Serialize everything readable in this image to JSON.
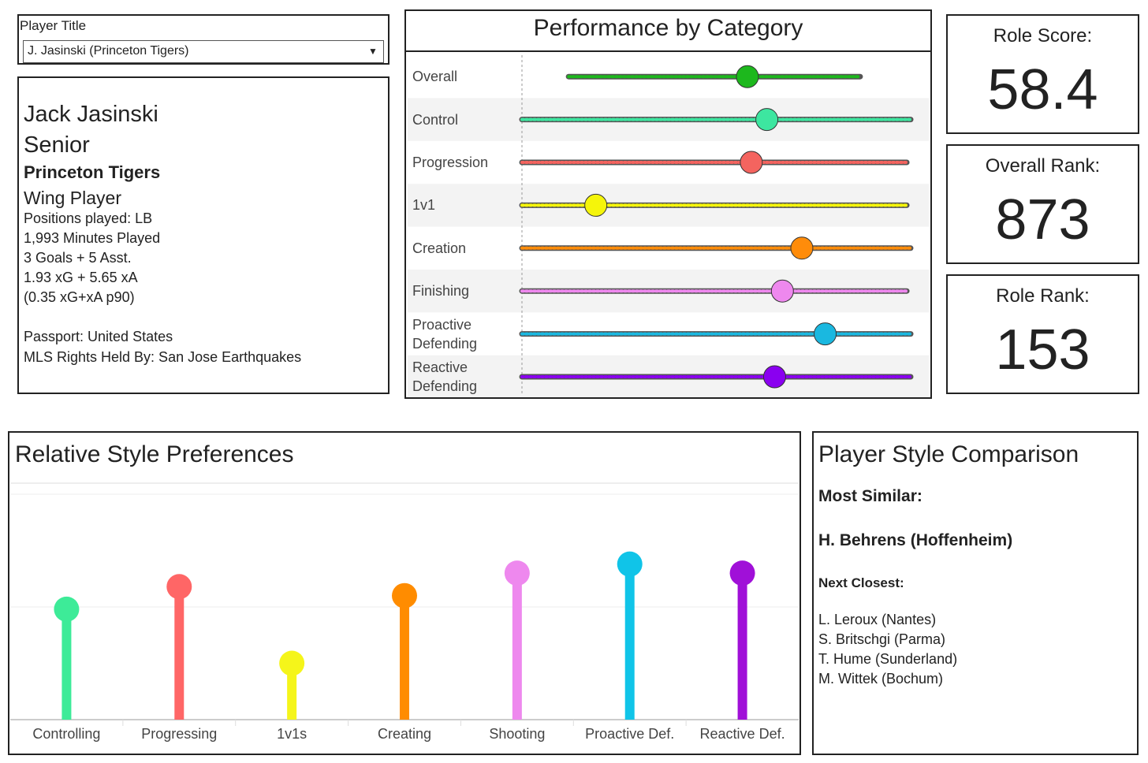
{
  "filter": {
    "label": "Player Title",
    "value": "J. Jasinski (Princeton Tigers)"
  },
  "player": {
    "name": "Jack Jasinski",
    "class": "Senior",
    "team": "Princeton Tigers",
    "role": "Wing Player",
    "details": [
      "Positions played: LB",
      "1,993 Minutes Played",
      "3 Goals + 5 Asst.",
      "1.93 xG + 5.65 xA",
      "(0.35 xG+xA p90)"
    ],
    "eligibility": [
      "Passport: United States",
      "MLS Rights Held By: San Jose Earthquakes"
    ]
  },
  "kpis": [
    {
      "label": "Role Score:",
      "value": 58.4
    },
    {
      "label": "Overall Rank:",
      "value": 873
    },
    {
      "label": "Role Rank:",
      "value": 153
    }
  ],
  "comparison": {
    "title": "Player Style Comparison",
    "most_similar_label": "Most Similar:",
    "most_similar": "H. Behrens (Hoffenheim)",
    "next_closest_label": "Next Closest:",
    "next_closest": [
      "L. Leroux (Nantes)",
      "S. Britschgi (Parma)",
      "T. Hume (Sunderland)",
      "M. Wittek (Bochum)"
    ]
  },
  "chart_data": [
    {
      "type": "strip",
      "title": "Performance by Category",
      "categories": [
        "Overall",
        "Control",
        "Progression",
        "1v1",
        "Creation",
        "Finishing",
        "Proactive Defending",
        "Reactive Defending"
      ],
      "values": [
        58,
        63,
        59,
        19,
        72,
        67,
        78,
        65
      ],
      "min": [
        12,
        0,
        0,
        0,
        0,
        0,
        0,
        0
      ],
      "max": [
        87,
        100,
        99,
        99,
        100,
        99,
        100,
        100
      ],
      "colors": [
        "#1db81d",
        "#3de6a0",
        "#f4645f",
        "#f5f50a",
        "#ff8c0a",
        "#ee88ee",
        "#1ab8e0",
        "#8a00f0"
      ],
      "xlim": [
        0,
        100
      ]
    },
    {
      "type": "lollipop",
      "title": "Relative Style Preferences",
      "categories": [
        "Controlling",
        "Progressing",
        "1v1s",
        "Creating",
        "Shooting",
        "Proactive Def.",
        "Reactive Def."
      ],
      "values": [
        49,
        59,
        25,
        55,
        65,
        69,
        65
      ],
      "colors": [
        "#3deb98",
        "#ff6666",
        "#f5f51a",
        "#ff8c00",
        "#ee88ee",
        "#10c4e8",
        "#a010d8"
      ],
      "ylim": [
        0,
        100
      ]
    }
  ]
}
